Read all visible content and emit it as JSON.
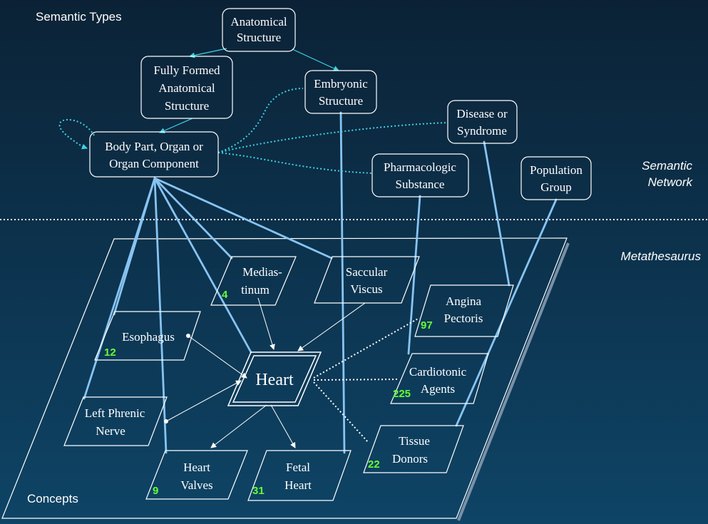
{
  "headings": {
    "semantic_types": "Semantic Types",
    "semantic_network_line1": "Semantic",
    "semantic_network_line2": "Network",
    "metathesaurus": "Metathesaurus",
    "concepts": "Concepts"
  },
  "semantic_types": {
    "anatomical_structure": [
      "Anatomical",
      "Structure"
    ],
    "fully_formed": [
      "Fully Formed",
      "Anatomical",
      "Structure"
    ],
    "embryonic": [
      "Embryonic",
      "Structure"
    ],
    "body_part": [
      "Body Part, Organ or",
      "Organ Component"
    ],
    "disease": [
      "Disease or",
      "Syndrome"
    ],
    "pharmacologic": [
      "Pharmacologic",
      "Substance"
    ],
    "population": [
      "Population",
      "Group"
    ]
  },
  "concepts": {
    "heart": {
      "label": [
        "Heart"
      ]
    },
    "mediastinum": {
      "label": [
        "Medias-",
        "tinum"
      ],
      "count": "4"
    },
    "saccular_viscus": {
      "label": [
        "Saccular",
        "Viscus"
      ]
    },
    "angina": {
      "label": [
        "Angina",
        "Pectoris"
      ],
      "count": "97"
    },
    "esophagus": {
      "label": [
        "Esophagus"
      ],
      "count": "12"
    },
    "cardiotonic": {
      "label": [
        "Cardiotonic",
        "Agents"
      ],
      "count": "225"
    },
    "left_phrenic": {
      "label": [
        "Left Phrenic",
        "Nerve"
      ]
    },
    "tissue_donors": {
      "label": [
        "Tissue",
        "Donors"
      ],
      "count": "22"
    },
    "heart_valves": {
      "label": [
        "Heart",
        "Valves"
      ],
      "count": "9"
    },
    "fetal_heart": {
      "label": [
        "Fetal",
        "Heart"
      ],
      "count": "31"
    }
  },
  "colors": {
    "bg_top": "#0b2236",
    "bg_bottom": "#0e4466",
    "box_stroke": "#ffffff",
    "type_link": "#88c4f2",
    "isa_link": "#3fd3e3",
    "count": "#66ff33",
    "text": "#ffffff"
  }
}
